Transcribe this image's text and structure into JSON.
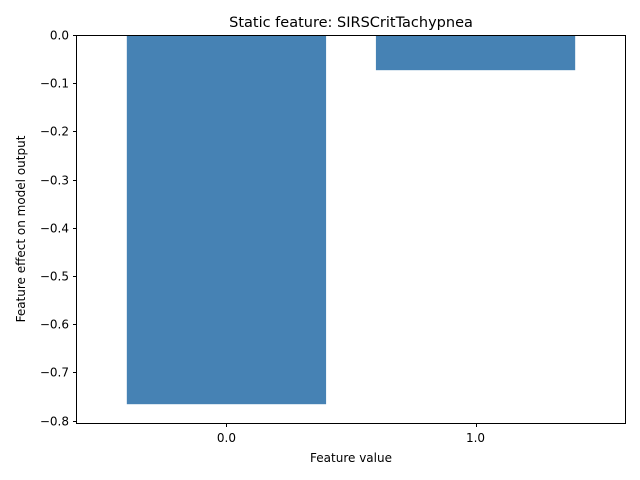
{
  "chart_data": {
    "type": "bar",
    "title": "Static feature: SIRSCritTachypnea",
    "xlabel": "Feature value",
    "ylabel": "Feature effect on model output",
    "categories": [
      "0.0",
      "1.0"
    ],
    "values": [
      -0.766,
      -0.073
    ],
    "ylim": [
      -0.805,
      0.0
    ],
    "yticks": [
      0.0,
      -0.1,
      -0.2,
      -0.3,
      -0.4,
      -0.5,
      -0.6,
      -0.7,
      -0.8
    ],
    "ytick_labels": [
      "0.0",
      "−0.1",
      "−0.2",
      "−0.3",
      "−0.4",
      "−0.5",
      "−0.6",
      "−0.7",
      "−0.8"
    ],
    "bar_color": "#4682b4",
    "grid": false,
    "legend": "none"
  }
}
